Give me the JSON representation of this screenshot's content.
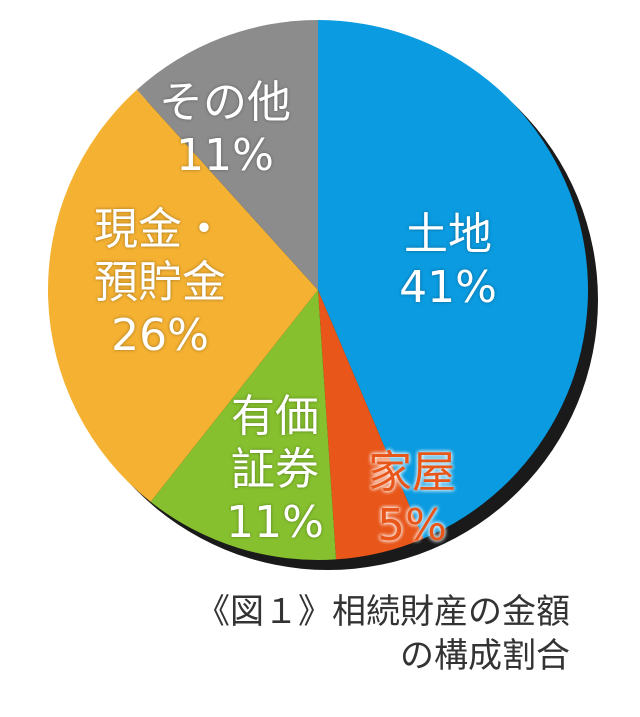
{
  "chart_data": {
    "type": "pie",
    "title": "《図１》相続財産の金額\nの構成割合",
    "categories": [
      "土地",
      "家屋",
      "有価\n証券",
      "現金・\n預貯金",
      "その他\n"
    ],
    "values": [
      41,
      5,
      11,
      26,
      11
    ],
    "value_labels": [
      "41%",
      "5%",
      "11%",
      "26%",
      "11%"
    ],
    "colors": [
      "#0a9be0",
      "#e8561a",
      "#86c02e",
      "#f4b132",
      "#8c8c8c"
    ]
  }
}
